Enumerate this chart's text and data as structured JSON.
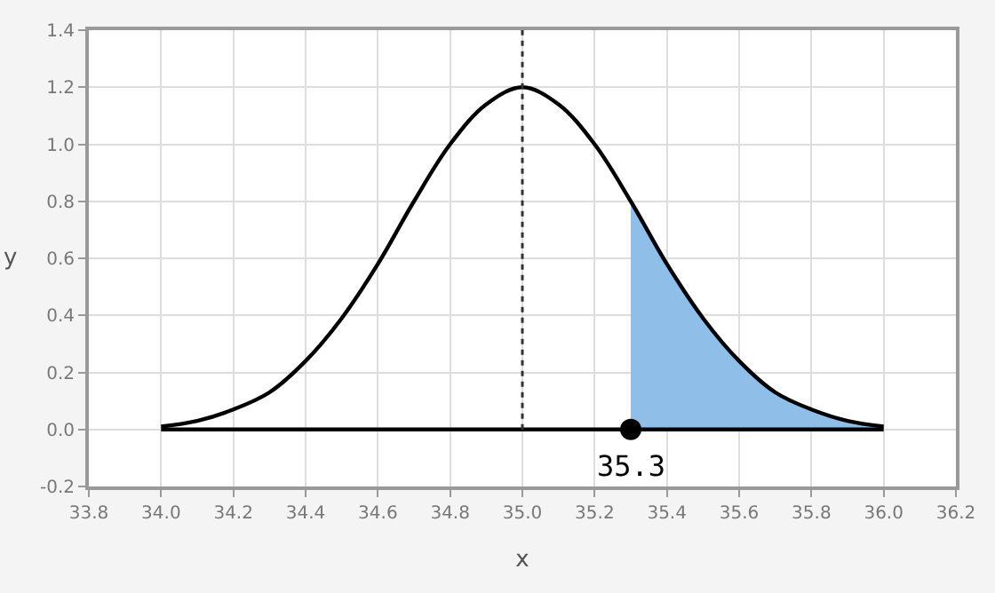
{
  "chart_data": {
    "type": "line",
    "xlabel": "x",
    "ylabel": "y",
    "series": [
      {
        "type": "area",
        "color": "#8fbfe9",
        "x": [
          35.3,
          35.4,
          35.5,
          35.6,
          35.7,
          35.8,
          35.9,
          36.0
        ],
        "values": [
          0.8,
          0.58,
          0.39,
          0.24,
          0.13,
          0.07,
          0.03,
          0.01
        ]
      },
      {
        "color": "#000000",
        "x": [
          34.0,
          34.1,
          34.2,
          34.3,
          34.4,
          34.5,
          34.6,
          34.7,
          34.8,
          34.9,
          35.0,
          35.1,
          35.2,
          35.3,
          35.4,
          35.5,
          35.6,
          35.7,
          35.8,
          35.9,
          36.0
        ],
        "values": [
          0.01,
          0.03,
          0.07,
          0.13,
          0.24,
          0.39,
          0.58,
          0.8,
          1.0,
          1.14,
          1.2,
          1.14,
          1.0,
          0.8,
          0.58,
          0.39,
          0.24,
          0.13,
          0.07,
          0.03,
          0.01
        ]
      },
      {
        "type": "line",
        "color": "#000000",
        "x": [
          34.0,
          36.0
        ],
        "values": [
          0,
          0
        ]
      },
      {
        "type": "scatter",
        "marker": "circle",
        "color": "#000000",
        "x": [
          35.3
        ],
        "values": [
          0
        ]
      }
    ],
    "annotations": [
      {
        "text": "35.3",
        "x": 35.3,
        "y": 0
      }
    ],
    "ref_lines": [
      {
        "axis": "x",
        "value": 35.0,
        "color": "#333333",
        "line_style": "dotted"
      }
    ],
    "xlim": [
      33.8,
      36.2
    ],
    "xticks": [
      {
        "value": 33.8,
        "label": "33.8"
      },
      {
        "value": 34.0,
        "label": "34.0"
      },
      {
        "value": 34.2,
        "label": "34.2"
      },
      {
        "value": 34.4,
        "label": "34.4"
      },
      {
        "value": 34.6,
        "label": "34.6"
      },
      {
        "value": 34.8,
        "label": "34.8"
      },
      {
        "value": 35.0,
        "label": "35.0"
      },
      {
        "value": 35.2,
        "label": "35.2"
      },
      {
        "value": 35.4,
        "label": "35.4"
      },
      {
        "value": 35.6,
        "label": "35.6"
      },
      {
        "value": 35.8,
        "label": "35.8"
      },
      {
        "value": 36.0,
        "label": "36.0"
      },
      {
        "value": 36.2,
        "label": "36.2"
      }
    ],
    "ylim": [
      -0.2,
      1.4
    ],
    "yticks": [
      {
        "value": -0.2,
        "label": "-0.2"
      },
      {
        "value": 0,
        "label": "0.0"
      },
      {
        "value": 0.2,
        "label": "0.2"
      },
      {
        "value": 0.4,
        "label": "0.4"
      },
      {
        "value": 0.6,
        "label": "0.6"
      },
      {
        "value": 0.8,
        "label": "0.8"
      },
      {
        "value": 1.0,
        "label": "1.0"
      },
      {
        "value": 1.2,
        "label": "1.2"
      },
      {
        "value": 1.4,
        "label": "1.4"
      }
    ],
    "grid": true
  }
}
